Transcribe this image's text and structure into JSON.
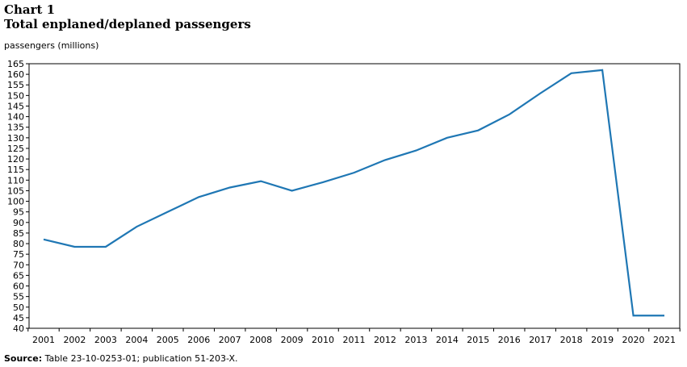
{
  "header": {
    "chart_number": "Chart 1",
    "title": "Total enplaned/deplaned passengers",
    "y_unit": "passengers (millions)"
  },
  "footer": {
    "source_label": "Source:",
    "source_text": " Table 23-10-0253-01; publication 51-203-X."
  },
  "chart_data": {
    "type": "line",
    "title": "Total enplaned/deplaned passengers",
    "xlabel": "",
    "ylabel": "passengers (millions)",
    "categories": [
      "2001",
      "2002",
      "2003",
      "2004",
      "2005",
      "2006",
      "2007",
      "2008",
      "2009",
      "2010",
      "2011",
      "2012",
      "2013",
      "2014",
      "2015",
      "2016",
      "2017",
      "2018",
      "2019",
      "2020",
      "2021"
    ],
    "series": [
      {
        "values": [
          82,
          78.5,
          78.5,
          88,
          95,
          102,
          106.5,
          109.5,
          105,
          109,
          113.5,
          119.5,
          124,
          130,
          133.5,
          141,
          151,
          160.5,
          162,
          46,
          46
        ],
        "color": "#1f77b4"
      }
    ],
    "ylim": [
      40,
      165
    ],
    "yticks": [
      40,
      45,
      50,
      55,
      60,
      65,
      70,
      75,
      80,
      85,
      90,
      95,
      100,
      105,
      110,
      115,
      120,
      125,
      130,
      135,
      140,
      145,
      150,
      155,
      160,
      165
    ],
    "grid": false,
    "legend": "none"
  }
}
